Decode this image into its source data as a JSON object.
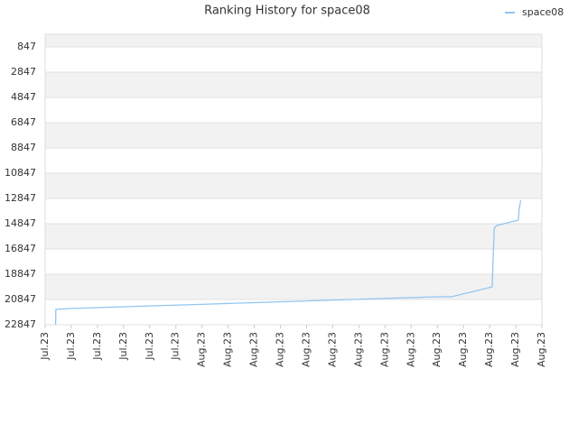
{
  "chart_data": {
    "type": "line",
    "title": "Ranking History for space08",
    "x": [
      0.4,
      0.41,
      0.97,
      2.0,
      3.1,
      4.15,
      5.28,
      6.39,
      7.43,
      8.53,
      9.57,
      10.64,
      11.74,
      12.82,
      13.92,
      14.99,
      15.54,
      17.1,
      17.13,
      17.18,
      17.27,
      18.1,
      18.13,
      18.19
    ],
    "series": [
      {
        "name": "space08",
        "color": "#92c5f0",
        "values": [
          22847,
          21633,
          21561,
          21490,
          21418,
          21347,
          21276,
          21204,
          21133,
          21061,
          20990,
          20918,
          20847,
          20775,
          20704,
          20633,
          20633,
          19847,
          17847,
          15204,
          14990,
          14561,
          13704,
          12990
        ]
      }
    ],
    "xlim": [
      0,
      19
    ],
    "xticks": [
      {
        "value": 0,
        "label": "Jul.23"
      },
      {
        "value": 1,
        "label": "Jul.23"
      },
      {
        "value": 2,
        "label": "Jul.23"
      },
      {
        "value": 3,
        "label": "Jul.23"
      },
      {
        "value": 4,
        "label": "Jul.23"
      },
      {
        "value": 5,
        "label": "Jul.23"
      },
      {
        "value": 6,
        "label": "Aug.23"
      },
      {
        "value": 7,
        "label": "Aug.23"
      },
      {
        "value": 8,
        "label": "Aug.23"
      },
      {
        "value": 9,
        "label": "Aug.23"
      },
      {
        "value": 10,
        "label": "Aug.23"
      },
      {
        "value": 11,
        "label": "Aug.23"
      },
      {
        "value": 12,
        "label": "Aug.23"
      },
      {
        "value": 13,
        "label": "Aug.23"
      },
      {
        "value": 14,
        "label": "Aug.23"
      },
      {
        "value": 15,
        "label": "Aug.23"
      },
      {
        "value": 16,
        "label": "Aug.23"
      },
      {
        "value": 17,
        "label": "Aug.23"
      },
      {
        "value": 18,
        "label": "Aug.23"
      },
      {
        "value": 19,
        "label": "Aug.23"
      }
    ],
    "ylim": [
      22847,
      -153
    ],
    "yticks": [
      847,
      2847,
      4847,
      6847,
      8847,
      10847,
      12847,
      14847,
      16847,
      18847,
      20847,
      22847
    ],
    "grid": true,
    "legend": "top-right"
  }
}
